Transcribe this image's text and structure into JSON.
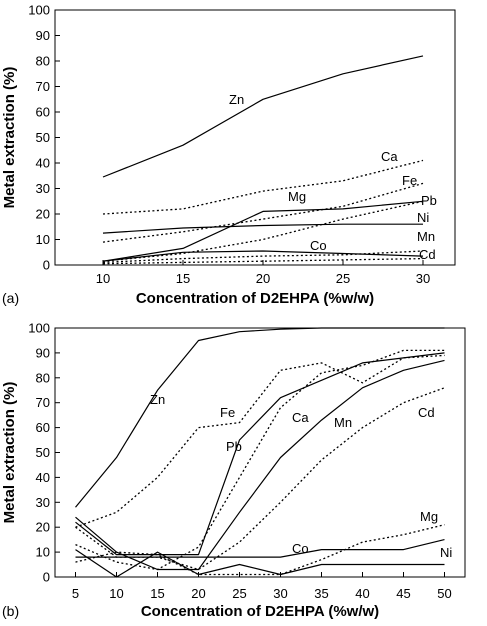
{
  "chart_data": [
    {
      "panel_label": "(a)",
      "type": "line",
      "xlabel": "Concentration of D2EHPA (%w/w)",
      "ylabel": "Metal extraction (%)",
      "x_ticks": [
        10,
        15,
        20,
        25,
        30
      ],
      "y_ticks": [
        0,
        10,
        20,
        30,
        40,
        50,
        60,
        70,
        80,
        90,
        100
      ],
      "xlim": [
        7,
        32
      ],
      "ylim": [
        0,
        100
      ],
      "grid": false,
      "legend": "labels placed next to curves",
      "series": [
        {
          "name": "Zn",
          "style": "solid",
          "x": [
            10,
            15,
            20,
            25,
            30
          ],
          "y": [
            34.5,
            47,
            65,
            75,
            82
          ]
        },
        {
          "name": "Ca",
          "style": "dotted",
          "x": [
            10,
            15,
            20,
            25,
            30
          ],
          "y": [
            20,
            22,
            29,
            33,
            41
          ]
        },
        {
          "name": "Fe",
          "style": "dotted",
          "x": [
            10,
            15,
            20,
            25,
            30
          ],
          "y": [
            9,
            13,
            18,
            23,
            32
          ]
        },
        {
          "name": "Mg",
          "style": "solid",
          "x": [
            10,
            15,
            20,
            25,
            30
          ],
          "y": [
            1.5,
            6.5,
            21,
            22,
            25
          ]
        },
        {
          "name": "Pb",
          "style": "dotted",
          "x": [
            10,
            15,
            20,
            25,
            30
          ],
          "y": [
            1.5,
            4.5,
            10,
            18,
            25
          ]
        },
        {
          "name": "Ni",
          "style": "solid",
          "x": [
            10,
            15,
            20,
            25,
            30
          ],
          "y": [
            12.5,
            14.5,
            15.5,
            16,
            16
          ]
        },
        {
          "name": "Mn",
          "style": "dotted",
          "x": [
            10,
            15,
            20,
            25,
            30
          ],
          "y": [
            1,
            2.5,
            3.5,
            4,
            5.5
          ]
        },
        {
          "name": "Co",
          "style": "solid",
          "x": [
            10,
            15,
            20,
            25,
            30
          ],
          "y": [
            1.5,
            5,
            5.5,
            4.5,
            3.5
          ]
        },
        {
          "name": "Cd",
          "style": "dotted",
          "x": [
            10,
            15,
            20,
            25,
            30
          ],
          "y": [
            0.5,
            1,
            1.5,
            2,
            2.5
          ]
        }
      ]
    },
    {
      "panel_label": "(b)",
      "type": "line",
      "xlabel": "Concentration of D2EHPA (%w/w)",
      "ylabel": "Metal extraction (%)",
      "x_ticks": [
        5,
        10,
        15,
        20,
        25,
        30,
        35,
        40,
        45,
        50
      ],
      "y_ticks": [
        0,
        10,
        20,
        30,
        40,
        50,
        60,
        70,
        80,
        90,
        100
      ],
      "xlim": [
        2.5,
        52.5
      ],
      "ylim": [
        0,
        100
      ],
      "grid": false,
      "legend": "labels placed next to curves",
      "series": [
        {
          "name": "Zn",
          "style": "solid",
          "x": [
            5,
            10,
            15,
            20,
            25,
            30,
            35,
            40,
            45,
            50
          ],
          "y": [
            28,
            48,
            75,
            95,
            98.5,
            99.5,
            100,
            100,
            100,
            100
          ]
        },
        {
          "name": "Fe",
          "style": "dotted",
          "x": [
            5,
            10,
            15,
            20,
            25,
            30,
            35,
            40,
            45,
            50
          ],
          "y": [
            20,
            26,
            40,
            60,
            62,
            83,
            86,
            78,
            88,
            89
          ]
        },
        {
          "name": "Ca",
          "style": "dotted",
          "x": [
            5,
            10,
            15,
            20,
            25,
            30,
            35,
            40,
            45,
            50
          ],
          "y": [
            13,
            6,
            3,
            12,
            40,
            68,
            82,
            85,
            91,
            91
          ]
        },
        {
          "name": "Pb",
          "style": "solid",
          "x": [
            5,
            10,
            15,
            20,
            25,
            30,
            35,
            40,
            45,
            50
          ],
          "y": [
            22,
            9,
            9,
            9,
            55,
            72,
            79,
            86,
            88,
            90
          ]
        },
        {
          "name": "Mn",
          "style": "solid",
          "x": [
            5,
            10,
            15,
            20,
            25,
            30,
            35,
            40,
            45,
            50
          ],
          "y": [
            24,
            10,
            3,
            3,
            26,
            48,
            63,
            76,
            83,
            87
          ]
        },
        {
          "name": "Cd",
          "style": "dotted",
          "x": [
            5,
            10,
            15,
            20,
            25,
            30,
            35,
            40,
            45,
            50
          ],
          "y": [
            20,
            8,
            8,
            3,
            14,
            30,
            47,
            60,
            70,
            76
          ]
        },
        {
          "name": "Mg",
          "style": "dotted",
          "x": [
            5,
            10,
            15,
            20,
            25,
            30,
            35,
            40,
            45,
            50
          ],
          "y": [
            6,
            10,
            9,
            1,
            1,
            1,
            7,
            14,
            17,
            21
          ]
        },
        {
          "name": "Co",
          "style": "solid",
          "x": [
            5,
            10,
            15,
            20,
            25,
            30,
            35,
            40,
            45,
            50
          ],
          "y": [
            8,
            8,
            8,
            8,
            8,
            8,
            11,
            11,
            11,
            15
          ]
        },
        {
          "name": "Ni",
          "style": "solid",
          "x": [
            5,
            10,
            15,
            20,
            25,
            30,
            35,
            40,
            45,
            50
          ],
          "y": [
            11,
            0,
            10,
            1,
            5,
            1,
            5,
            5,
            5,
            5
          ]
        }
      ]
    }
  ]
}
